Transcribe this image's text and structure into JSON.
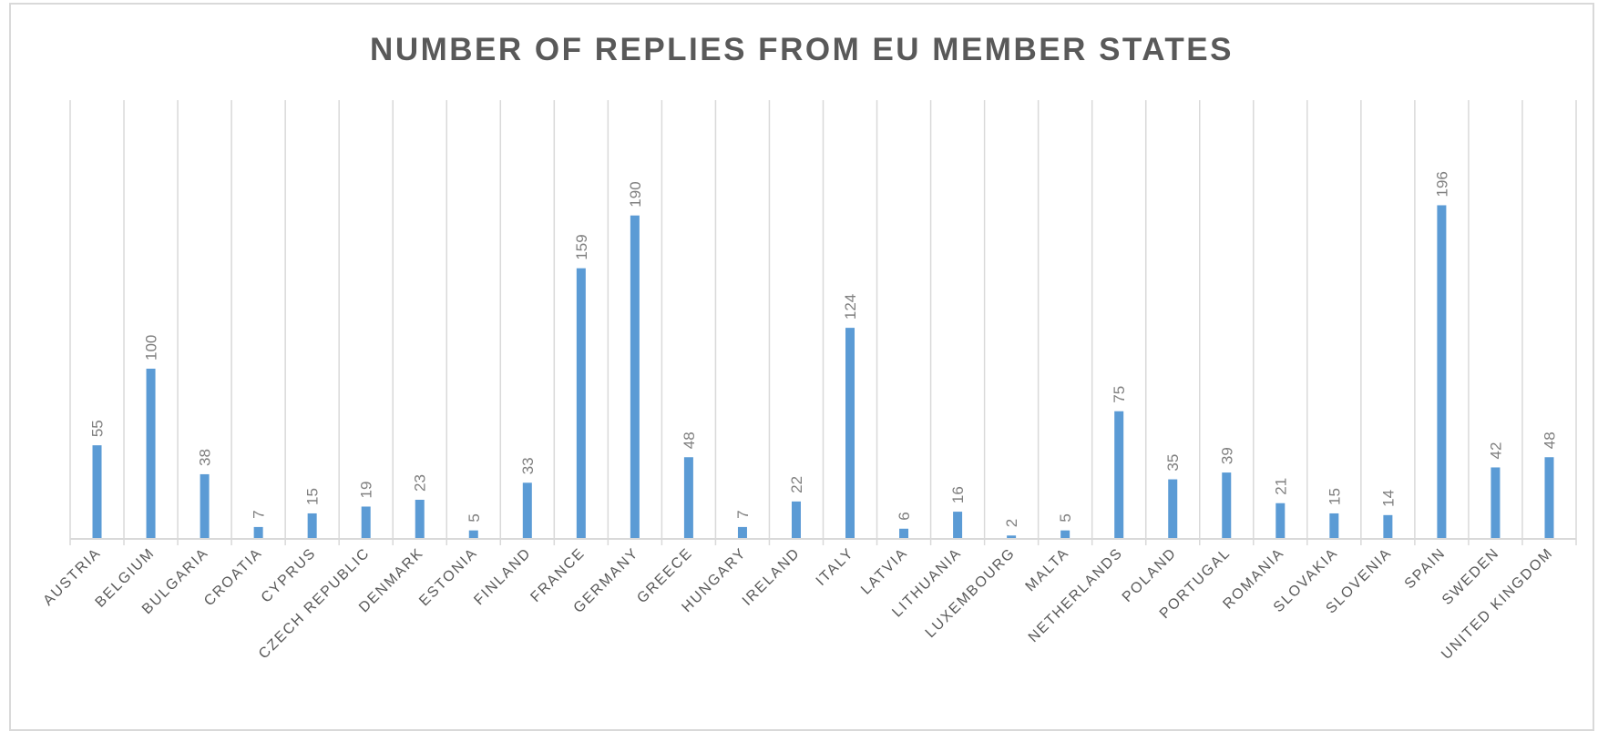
{
  "chart_data": {
    "type": "bar",
    "title": "NUMBER OF REPLIES FROM EU MEMBER STATES",
    "xlabel": "",
    "ylabel": "",
    "categories": [
      "AUSTRIA",
      "BELGIUM",
      "BULGARIA",
      "CROATIA",
      "CYPRUS",
      "CZECH REPUBLIC",
      "DENMARK",
      "ESTONIA",
      "FINLAND",
      "FRANCE",
      "GERMANY",
      "GREECE",
      "HUNGARY",
      "IRELAND",
      "ITALY",
      "LATVIA",
      "LITHUANIA",
      "LUXEMBOURG",
      "MALTA",
      "NETHERLANDS",
      "POLAND",
      "PORTUGAL",
      "ROMANIA",
      "SLOVAKIA",
      "SLOVENIA",
      "SPAIN",
      "SWEDEN",
      "UNITED KINGDOM"
    ],
    "values": [
      55,
      100,
      38,
      7,
      15,
      19,
      23,
      5,
      33,
      159,
      190,
      48,
      7,
      22,
      124,
      6,
      16,
      2,
      5,
      75,
      35,
      39,
      21,
      15,
      14,
      196,
      42,
      48
    ],
    "ylim": [
      0,
      250
    ],
    "grid": true,
    "legend": "none",
    "colors": {
      "bar": "#5b9bd5",
      "grid": "#d9d9d9",
      "title": "#595959",
      "data_label": "#7f7f7f",
      "tick_label": "#595959"
    }
  }
}
